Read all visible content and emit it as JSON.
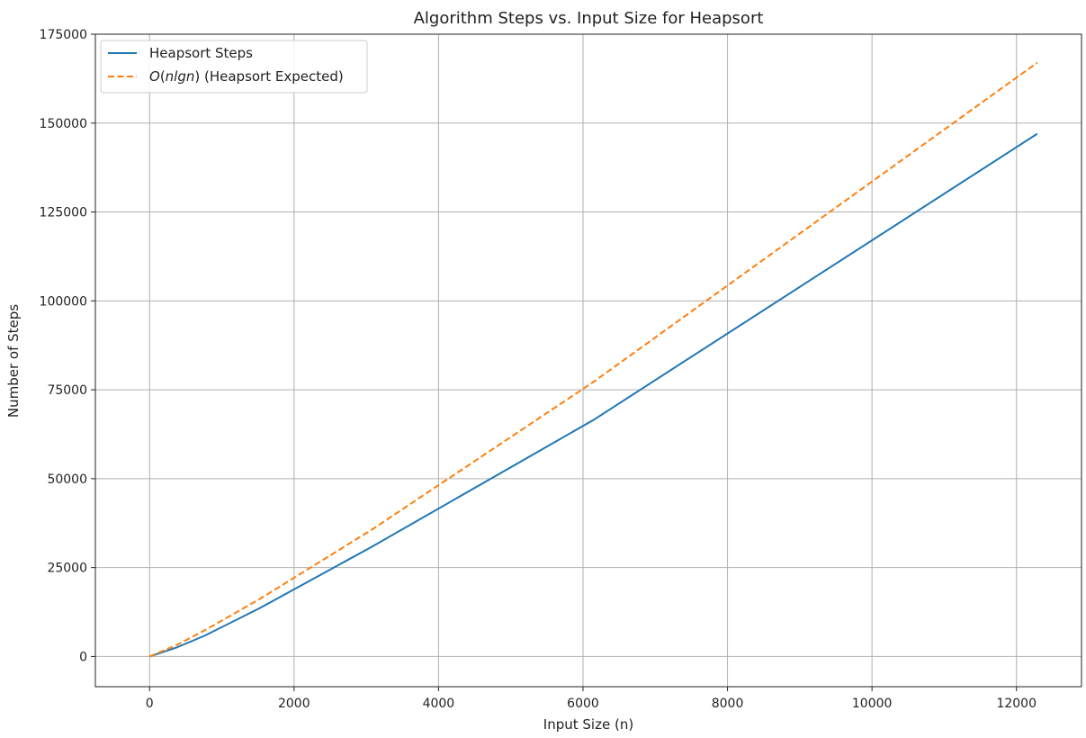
{
  "chart_data": {
    "type": "line",
    "title": "Algorithm Steps vs. Input Size for Heapsort",
    "xlabel": "Input Size (n)",
    "ylabel": "Number of Steps",
    "xlim": [
      -750,
      12900
    ],
    "ylim": [
      -8500,
      175000
    ],
    "xticks": [
      0,
      2000,
      4000,
      6000,
      8000,
      10000,
      12000
    ],
    "yticks": [
      0,
      25000,
      50000,
      75000,
      100000,
      125000,
      150000,
      175000
    ],
    "grid": true,
    "legend_position": "top-left",
    "series": [
      {
        "name": "Heapsort Steps",
        "color": "#1f77b4",
        "style": "solid",
        "x": [
          1,
          384,
          768,
          1536,
          3072,
          6144,
          12288
        ],
        "y": [
          0,
          2600,
          5900,
          13700,
          30800,
          66500,
          147000
        ]
      },
      {
        "name_parts": [
          "O",
          "(",
          "nlgn",
          ") (Heapsort Expected)"
        ],
        "color": "#ff7f0e",
        "style": "dashed",
        "x": [
          1,
          384,
          768,
          1536,
          3072,
          6144,
          12288
        ],
        "y": [
          0,
          3300,
          7400,
          16300,
          35600,
          77200,
          167000
        ]
      }
    ]
  }
}
